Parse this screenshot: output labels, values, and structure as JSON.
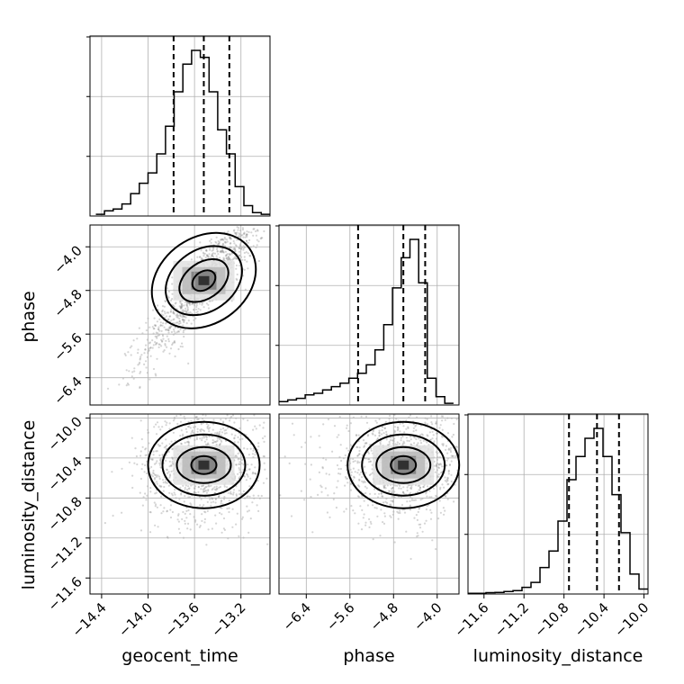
{
  "chart_data": {
    "type": "corner",
    "parameters": [
      {
        "name": "geocent_time",
        "label": "geocent_time",
        "range": [
          -14.5,
          -12.95
        ],
        "ticks": [
          -14.4,
          -14.0,
          -13.6,
          -13.2
        ],
        "tick_labels": [
          "−14.4",
          "−14.0",
          "−13.6",
          "−13.2"
        ],
        "quantiles": [
          -13.78,
          -13.52,
          -13.3
        ],
        "histogram": {
          "bin_start": -14.45,
          "bin_width": 0.075,
          "counts": [
            0.01,
            0.03,
            0.04,
            0.07,
            0.13,
            0.19,
            0.25,
            0.36,
            0.52,
            0.72,
            0.88,
            0.96,
            0.92,
            0.72,
            0.5,
            0.36,
            0.17,
            0.06,
            0.02,
            0.01
          ]
        }
      },
      {
        "name": "phase",
        "label": "phase",
        "range": [
          -6.9,
          -3.6
        ],
        "ticks": [
          -6.4,
          -5.6,
          -4.8,
          -4.0
        ],
        "tick_labels": [
          "−6.4",
          "−5.6",
          "−4.8",
          "−4.0"
        ],
        "quantiles": [
          -5.45,
          -4.62,
          -4.22
        ],
        "histogram": {
          "bin_start": -6.9,
          "bin_width": 0.16,
          "counts": [
            0.02,
            0.03,
            0.04,
            0.06,
            0.07,
            0.09,
            0.11,
            0.13,
            0.16,
            0.19,
            0.24,
            0.33,
            0.48,
            0.7,
            0.88,
            0.99,
            0.73,
            0.16,
            0.05,
            0.01
          ]
        }
      },
      {
        "name": "luminosity_distance",
        "label": "luminosity_distance",
        "range": [
          -11.76,
          -9.96
        ],
        "ticks": [
          -11.6,
          -11.2,
          -10.8,
          -10.4,
          -10.0
        ],
        "tick_labels": [
          "−11.6",
          "−11.2",
          "−10.8",
          "−10.4",
          "−10.0"
        ],
        "quantiles": [
          -10.75,
          -10.47,
          -10.25
        ],
        "histogram": {
          "bin_start": -11.76,
          "bin_width": 0.09,
          "counts": [
            0.004,
            0.004,
            0.008,
            0.01,
            0.015,
            0.02,
            0.04,
            0.07,
            0.16,
            0.26,
            0.44,
            0.69,
            0.83,
            0.94,
            1.0,
            0.83,
            0.6,
            0.37,
            0.12,
            0.03
          ]
        }
      }
    ],
    "pairs": [
      {
        "x": "geocent_time",
        "y": "phase",
        "corr": 0.85
      },
      {
        "x": "geocent_time",
        "y": "luminosity_distance",
        "corr": 0.0
      },
      {
        "x": "phase",
        "y": "luminosity_distance",
        "corr": 0.05
      }
    ],
    "grid": true,
    "histogram_style": "step",
    "quantile_line_style": "dashed"
  }
}
